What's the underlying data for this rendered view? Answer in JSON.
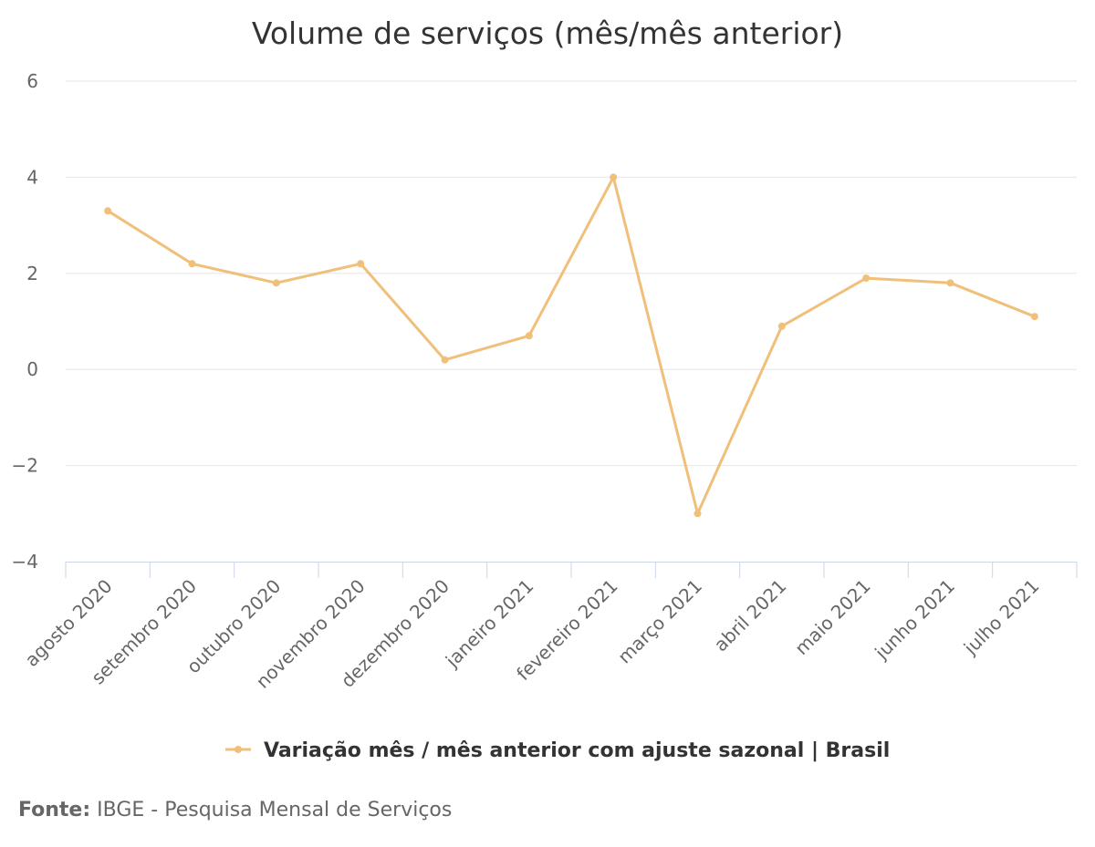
{
  "chart_data": {
    "type": "line",
    "title": "Volume de serviços (mês/mês anterior)",
    "categories": [
      "agosto 2020",
      "setembro 2020",
      "outubro 2020",
      "novembro 2020",
      "dezembro 2020",
      "janeiro 2021",
      "fevereiro 2021",
      "março 2021",
      "abril 2021",
      "maio 2021",
      "junho 2021",
      "julho 2021"
    ],
    "series": [
      {
        "name": "Variação mês / mês anterior com ajuste sazonal | Brasil",
        "values": [
          3.3,
          2.2,
          1.8,
          2.2,
          0.2,
          0.7,
          4.0,
          -3.0,
          0.9,
          1.9,
          1.8,
          1.1
        ],
        "color": "#f0bf7a"
      }
    ],
    "yticks": [
      "6",
      "4",
      "2",
      "0",
      "−2",
      "−4"
    ],
    "ylim": [
      -4,
      6
    ],
    "grid": true,
    "legend_position": "bottom-center"
  },
  "source": {
    "label": "Fonte:",
    "text": " IBGE - Pesquisa Mensal de Serviços"
  }
}
